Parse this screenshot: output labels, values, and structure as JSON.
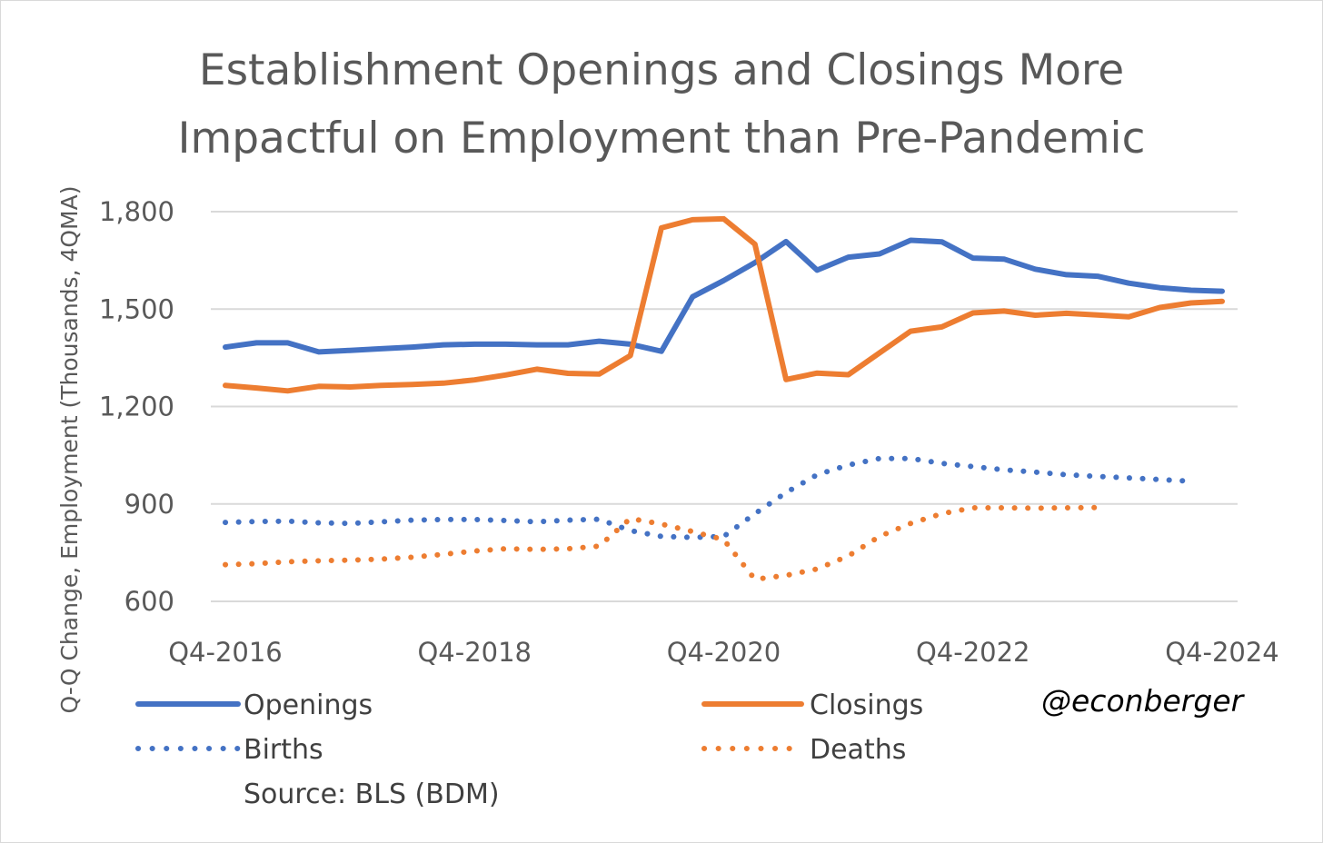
{
  "chart_data": {
    "type": "line",
    "title_lines": [
      "Establishment Openings and Closings More",
      "Impactful on Employment than Pre-Pandemic"
    ],
    "ylabel": "Q-Q Change, Employment (Thousands, 4QMA)",
    "ylim": [
      600,
      1800
    ],
    "yticks": [
      {
        "value": 1800,
        "label": "1,800"
      },
      {
        "value": 1500,
        "label": "1,500"
      },
      {
        "value": 1200,
        "label": "1,200"
      },
      {
        "value": 900,
        "label": "900"
      },
      {
        "value": 600,
        "label": "600"
      }
    ],
    "xticks": [
      {
        "index": 0,
        "label": "Q4-2016"
      },
      {
        "index": 8,
        "label": "Q4-2018"
      },
      {
        "index": 16,
        "label": "Q4-2020"
      },
      {
        "index": 24,
        "label": "Q4-2022"
      },
      {
        "index": 32,
        "label": "Q4-2024"
      }
    ],
    "n_points": 33,
    "series": [
      {
        "name": "Openings",
        "color": "#4472C4",
        "style": "solid",
        "values": [
          1383,
          1396,
          1396,
          1368,
          1373,
          1378,
          1383,
          1390,
          1392,
          1392,
          1390,
          1390,
          1401,
          1392,
          1370,
          1538,
          1588,
          1643,
          1708,
          1620,
          1660,
          1670,
          1712,
          1707,
          1657,
          1654,
          1623,
          1606,
          1601,
          1580,
          1566,
          1558,
          1555
        ]
      },
      {
        "name": "Closings",
        "color": "#ED7D31",
        "style": "solid",
        "values": [
          1265,
          1257,
          1248,
          1262,
          1260,
          1265,
          1268,
          1272,
          1282,
          1297,
          1315,
          1302,
          1300,
          1357,
          1750,
          1775,
          1778,
          1700,
          1283,
          1303,
          1298,
          1365,
          1432,
          1445,
          1488,
          1494,
          1481,
          1487,
          1482,
          1476,
          1505,
          1519,
          1524
        ]
      },
      {
        "name": "Births",
        "color": "#4472C4",
        "style": "dotted",
        "values": [
          843,
          846,
          847,
          842,
          840,
          845,
          850,
          852,
          852,
          849,
          845,
          850,
          853,
          818,
          800,
          797,
          800,
          870,
          935,
          990,
          1020,
          1040,
          1040,
          1025,
          1015,
          1005,
          998,
          990,
          985,
          980,
          975,
          970,
          null
        ]
      },
      {
        "name": "Deaths",
        "color": "#ED7D31",
        "style": "dotted",
        "values": [
          713,
          716,
          722,
          725,
          727,
          730,
          736,
          745,
          755,
          762,
          760,
          762,
          770,
          855,
          838,
          815,
          790,
          668,
          680,
          700,
          740,
          800,
          840,
          870,
          888,
          888,
          887,
          888,
          889,
          null,
          null,
          null,
          null
        ]
      }
    ],
    "legend": [
      {
        "name": "Openings",
        "label": "Openings"
      },
      {
        "name": "Closings",
        "label": "Closings"
      },
      {
        "name": "Births",
        "label": "Births"
      },
      {
        "name": "Deaths",
        "label": "Deaths"
      }
    ],
    "source": "Source: BLS (BDM)",
    "handle": "@econberger"
  }
}
